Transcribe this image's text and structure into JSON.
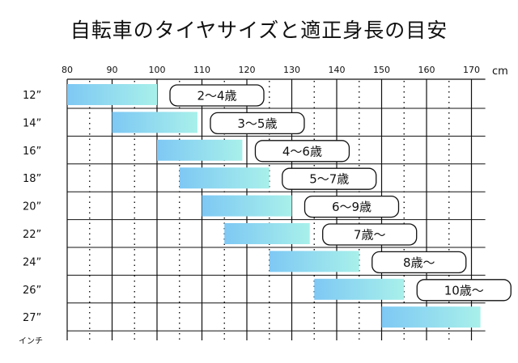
{
  "title": "自転車のタイヤサイズと適正身長の目安",
  "chart_data": {
    "type": "bar",
    "subtype": "horizontal-range",
    "title": "自転車のタイヤサイズと適正身長の目安",
    "x_unit": "cm",
    "x_ticks": [
      80,
      90,
      100,
      110,
      120,
      130,
      140,
      150,
      160,
      170
    ],
    "xlim": [
      80,
      172
    ],
    "minor_gridlines": [
      85,
      95,
      105,
      115,
      125,
      135,
      145,
      155,
      165
    ],
    "y_unit": "インチ",
    "categories": [
      "12”",
      "14”",
      "16”",
      "18”",
      "20”",
      "22”",
      "24”",
      "26”",
      "27”"
    ],
    "ranges": [
      {
        "from": 80,
        "to": 100,
        "age": "2〜4歳"
      },
      {
        "from": 90,
        "to": 109,
        "age": "3〜5歳"
      },
      {
        "from": 100,
        "to": 119,
        "age": "4〜6歳"
      },
      {
        "from": 105,
        "to": 125,
        "age": "5〜7歳"
      },
      {
        "from": 110,
        "to": 130,
        "age": "6〜9歳"
      },
      {
        "from": 115,
        "to": 134,
        "age": "7歳〜"
      },
      {
        "from": 125,
        "to": 145,
        "age": "8歳〜"
      },
      {
        "from": 135,
        "to": 155,
        "age": "10歳〜"
      },
      {
        "from": 150,
        "to": 172,
        "age": ""
      }
    ],
    "colors": {
      "bar_start": "#7ec8f4",
      "bar_end": "#a8f0ea",
      "grid": "#111111"
    }
  }
}
